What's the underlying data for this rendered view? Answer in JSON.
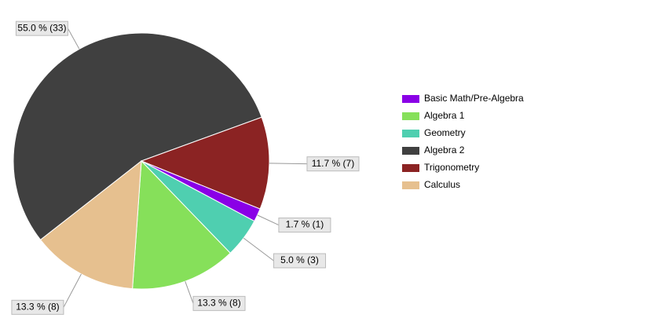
{
  "chart_data": {
    "type": "pie",
    "categories": [
      "Algebra 2",
      "Trigonometry",
      "Basic Math/Pre-Algebra",
      "Geometry",
      "Algebra 1",
      "Calculus"
    ],
    "values": [
      33,
      7,
      1,
      3,
      8,
      8
    ],
    "value_labels": [
      "55.0 % (33)",
      "11.7 % (7)",
      "1.7 % (1)",
      "5.0 % (3)",
      "13.3 % (8)",
      "13.3 % (8)"
    ],
    "colors": [
      "#404040",
      "#8b2323",
      "#8a00e6",
      "#4fcfb0",
      "#86e05a",
      "#e6c08f"
    ],
    "legend_order": [
      2,
      4,
      3,
      0,
      1,
      5
    ],
    "legend": "right"
  }
}
